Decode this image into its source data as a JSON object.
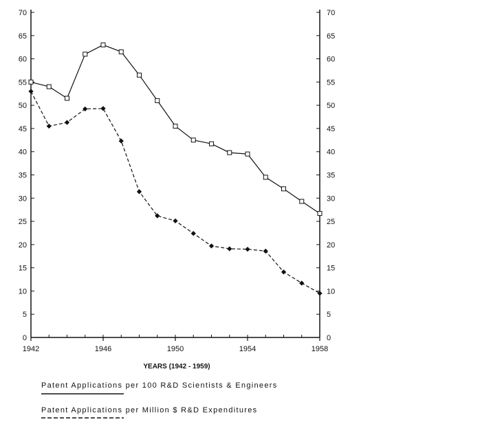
{
  "chart_data": {
    "type": "line",
    "title": "",
    "xlabel": "YEARS (1942 - 1959)",
    "ylabel": "",
    "xlim": [
      1942,
      1958
    ],
    "ylim": [
      0,
      70
    ],
    "yticks": [
      0,
      5,
      10,
      15,
      20,
      25,
      30,
      35,
      40,
      45,
      50,
      55,
      60,
      65,
      70
    ],
    "xticks": [
      1942,
      1946,
      1950,
      1954,
      1958
    ],
    "x": [
      1942,
      1943,
      1944,
      1945,
      1946,
      1947,
      1948,
      1949,
      1950,
      1951,
      1952,
      1953,
      1954,
      1955,
      1956,
      1957,
      1958
    ],
    "grid": false,
    "legend_position": "bottom",
    "series": [
      {
        "name": "Patent Applications per 100 R&D Scientists & Engineers",
        "style": "solid",
        "marker": "square",
        "values": [
          55,
          54,
          51.5,
          61,
          63,
          61.5,
          56.5,
          51,
          45.5,
          42.5,
          41.7,
          39.8,
          39.5,
          34.5,
          32,
          29.3,
          26.7
        ]
      },
      {
        "name": "Patent Applications per Million $ R&D Expenditures",
        "style": "dashed",
        "marker": "diamond",
        "values": [
          53,
          45.5,
          46.3,
          49.2,
          49.3,
          42.3,
          31.4,
          26.2,
          25.1,
          22.4,
          19.7,
          19.1,
          19,
          18.6,
          14.1,
          11.7,
          9.5
        ]
      }
    ]
  }
}
